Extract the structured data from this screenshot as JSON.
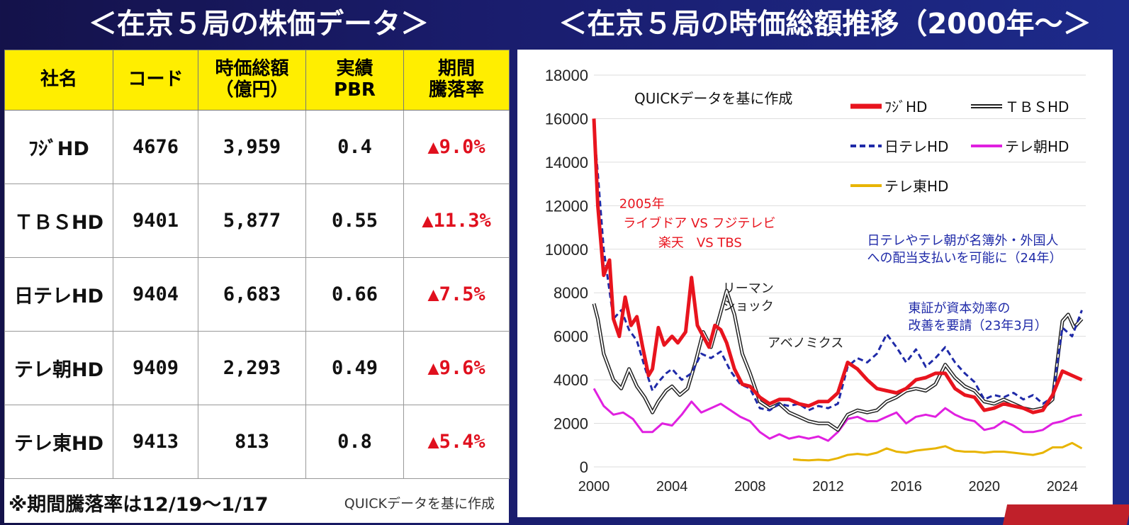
{
  "left_title": "＜在京５局の株価データ＞",
  "right_title": "＜在京５局の時価総額推移（2000年～＞",
  "table": {
    "headers": [
      "社名",
      "コード",
      "時価総額\n（億円）",
      "実績\nPBR",
      "期間\n騰落率"
    ],
    "rows": [
      {
        "name": "ﾌｼﾞHD",
        "code": "4676",
        "mcap": "3,959",
        "pbr": "0.4",
        "change": "▲9.0%"
      },
      {
        "name": "ＴＢＳHD",
        "code": "9401",
        "mcap": "5,877",
        "pbr": "0.55",
        "change": "▲11.3%"
      },
      {
        "name": "日テレHD",
        "code": "9404",
        "mcap": "6,683",
        "pbr": "0.66",
        "change": "▲7.5%"
      },
      {
        "name": "テレ朝HD",
        "code": "9409",
        "mcap": "2,293",
        "pbr": "0.49",
        "change": "▲9.6%"
      },
      {
        "name": "テレ東HD",
        "code": "9413",
        "mcap": "813",
        "pbr": "0.8",
        "change": "▲5.4%"
      }
    ],
    "note": "※期間騰落率は12/19～1/17",
    "source": "QUICKデータを基に作成"
  },
  "chart_source": "QUICKデータを基に作成",
  "chart_data": {
    "type": "line",
    "xlim": [
      2000,
      2025.2
    ],
    "ylim": [
      0,
      18000
    ],
    "yticks": [
      0,
      2000,
      4000,
      6000,
      8000,
      10000,
      12000,
      14000,
      16000,
      18000
    ],
    "xticks": [
      "2000",
      "2004",
      "2008",
      "2012",
      "2016",
      "2020",
      "2024"
    ],
    "grid": "horizontal",
    "legend_position": "top-right",
    "series": [
      {
        "name": "ﾌｼﾞHD",
        "color": "#e8141e",
        "style": "solid-thick",
        "x": [
          2000,
          2000.2,
          2000.5,
          2000.8,
          2001,
          2001.3,
          2001.6,
          2001.9,
          2002.2,
          2002.5,
          2002.8,
          2003,
          2003.3,
          2003.6,
          2004,
          2004.3,
          2004.7,
          2005,
          2005.3,
          2005.6,
          2005.9,
          2006.2,
          2006.5,
          2006.8,
          2007.2,
          2007.6,
          2008,
          2008.5,
          2009,
          2009.5,
          2010,
          2010.5,
          2011,
          2011.5,
          2012,
          2012.5,
          2013,
          2013.5,
          2014,
          2014.5,
          2015,
          2015.5,
          2016,
          2016.5,
          2017,
          2017.5,
          2018,
          2018.5,
          2019,
          2019.5,
          2020,
          2020.5,
          2021,
          2021.5,
          2022,
          2022.5,
          2023,
          2023.5,
          2024,
          2024.5,
          2025
        ],
        "y": [
          16000,
          12000,
          8800,
          9500,
          6800,
          6000,
          7800,
          6500,
          6900,
          5500,
          4200,
          4500,
          6400,
          5600,
          6000,
          5700,
          6200,
          8700,
          6500,
          6000,
          5500,
          6500,
          6300,
          5700,
          4500,
          3800,
          3700,
          3200,
          2900,
          3100,
          3100,
          2900,
          2800,
          3000,
          3000,
          3400,
          4800,
          4500,
          4000,
          3600,
          3500,
          3400,
          3600,
          4000,
          4100,
          4300,
          4300,
          3600,
          3300,
          3200,
          2600,
          2700,
          2900,
          2800,
          2700,
          2500,
          2600,
          3300,
          4400,
          4200,
          4000
        ]
      },
      {
        "name": "ＴＢＳHD",
        "color": "#222222",
        "style": "double",
        "x": [
          2000,
          2000.2,
          2000.5,
          2001,
          2001.4,
          2001.8,
          2002.2,
          2002.6,
          2003,
          2003.3,
          2003.7,
          2004,
          2004.4,
          2004.8,
          2005.2,
          2005.6,
          2006,
          2006.4,
          2006.8,
          2007.2,
          2007.6,
          2008,
          2008.5,
          2009,
          2009.5,
          2010,
          2010.5,
          2011,
          2011.5,
          2012,
          2012.5,
          2013,
          2013.5,
          2014,
          2014.5,
          2015,
          2015.5,
          2016,
          2016.5,
          2017,
          2017.5,
          2018,
          2018.5,
          2019,
          2019.5,
          2020,
          2020.5,
          2021,
          2021.5,
          2022,
          2022.5,
          2023,
          2023.5,
          2024,
          2024.3,
          2024.6,
          2025
        ],
        "y": [
          7500,
          6800,
          5200,
          4000,
          3600,
          4500,
          3700,
          3200,
          2500,
          3000,
          3500,
          3700,
          3300,
          3600,
          4800,
          6200,
          5500,
          6800,
          8100,
          7000,
          5200,
          4300,
          3000,
          2700,
          2900,
          2500,
          2300,
          2100,
          2000,
          2000,
          1700,
          2400,
          2600,
          2500,
          2600,
          3000,
          3200,
          3500,
          3600,
          3500,
          3800,
          4700,
          4100,
          3700,
          3500,
          3000,
          2900,
          3100,
          2900,
          2700,
          2600,
          2700,
          3100,
          6700,
          7000,
          6400,
          6800
        ]
      },
      {
        "name": "日テレHD",
        "color": "#1f2aa8",
        "style": "dashed",
        "x": [
          2000,
          2000.2,
          2000.5,
          2001,
          2001.4,
          2001.8,
          2002.2,
          2002.6,
          2003,
          2003.3,
          2003.7,
          2004,
          2004.5,
          2005,
          2005.5,
          2006,
          2006.5,
          2007,
          2007.5,
          2008,
          2008.5,
          2009,
          2009.5,
          2010,
          2010.5,
          2011,
          2011.5,
          2012,
          2012.5,
          2013,
          2013.5,
          2014,
          2014.5,
          2015,
          2015.5,
          2016,
          2016.5,
          2017,
          2017.5,
          2018,
          2018.5,
          2019,
          2019.5,
          2020,
          2020.5,
          2021,
          2021.5,
          2022,
          2022.5,
          2023,
          2023.5,
          2024,
          2024.5,
          2025
        ],
        "y": [
          15600,
          13500,
          10000,
          6800,
          7200,
          6300,
          5800,
          4600,
          3500,
          3900,
          4300,
          4500,
          4000,
          4300,
          5200,
          5000,
          5300,
          4400,
          3800,
          3600,
          2700,
          2600,
          2900,
          2800,
          2900,
          2600,
          2800,
          2700,
          2900,
          4600,
          5000,
          4800,
          5200,
          6100,
          5500,
          4800,
          5400,
          4600,
          5000,
          5500,
          4800,
          4300,
          3900,
          3100,
          3300,
          3200,
          3400,
          3100,
          3300,
          2900,
          3200,
          6400,
          6000,
          7200
        ]
      },
      {
        "name": "テレ朝HD",
        "color": "#e020e0",
        "style": "solid",
        "x": [
          2000,
          2000.5,
          2001,
          2001.5,
          2002,
          2002.5,
          2003,
          2003.5,
          2004,
          2004.5,
          2005,
          2005.5,
          2006,
          2006.5,
          2007,
          2007.5,
          2008,
          2008.5,
          2009,
          2009.5,
          2010,
          2010.5,
          2011,
          2011.5,
          2012,
          2012.5,
          2013,
          2013.5,
          2014,
          2014.5,
          2015,
          2015.5,
          2016,
          2016.5,
          2017,
          2017.5,
          2018,
          2018.5,
          2019,
          2019.5,
          2020,
          2020.5,
          2021,
          2021.5,
          2022,
          2022.5,
          2023,
          2023.5,
          2024,
          2024.5,
          2025
        ],
        "y": [
          3600,
          2800,
          2400,
          2500,
          2200,
          1600,
          1600,
          2000,
          1900,
          2400,
          3000,
          2500,
          2700,
          2900,
          2600,
          2300,
          2100,
          1600,
          1300,
          1500,
          1300,
          1400,
          1300,
          1400,
          1200,
          1600,
          2200,
          2300,
          2100,
          2100,
          2300,
          2500,
          2000,
          2300,
          2400,
          2300,
          2700,
          2400,
          2200,
          2100,
          1700,
          1800,
          2100,
          1900,
          1600,
          1600,
          1700,
          2000,
          2100,
          2300,
          2400
        ]
      },
      {
        "name": "テレ東HD",
        "color": "#e8b400",
        "style": "solid",
        "x": [
          2010.2,
          2010.6,
          2011,
          2011.5,
          2012,
          2012.5,
          2013,
          2013.5,
          2014,
          2014.5,
          2015,
          2015.5,
          2016,
          2016.5,
          2017,
          2017.5,
          2018,
          2018.5,
          2019,
          2019.5,
          2020,
          2020.5,
          2021,
          2021.5,
          2022,
          2022.5,
          2023,
          2023.5,
          2024,
          2024.5,
          2025
        ],
        "y": [
          350,
          320,
          300,
          330,
          300,
          400,
          550,
          600,
          550,
          650,
          850,
          700,
          650,
          750,
          800,
          850,
          950,
          750,
          700,
          700,
          650,
          700,
          700,
          650,
          600,
          550,
          650,
          900,
          900,
          1100,
          850
        ]
      }
    ],
    "annotations": [
      {
        "text": "2005年",
        "color": "#e8141e",
        "x": 2001.3,
        "y": 11900
      },
      {
        "text": "ライブドア VS フジテレビ",
        "color": "#e8141e",
        "x": 2001.5,
        "y": 11000
      },
      {
        "text": "楽天　VS TBS",
        "color": "#e8141e",
        "x": 2003.3,
        "y": 10100
      },
      {
        "text": "日テレやテレ朝が名簿外・外国人",
        "color": "#1f2aa8",
        "x": 2014.0,
        "y": 10200
      },
      {
        "text": "への配当支払いを可能に（24年）",
        "color": "#1f2aa8",
        "x": 2014.0,
        "y": 9400
      },
      {
        "text": "リーマン",
        "color": "#222222",
        "x": 2006.6,
        "y": 8000
      },
      {
        "text": "ショック",
        "color": "#222222",
        "x": 2006.6,
        "y": 7200
      },
      {
        "text": "東証が資本効率の",
        "color": "#1f2aa8",
        "x": 2016.1,
        "y": 7100
      },
      {
        "text": "改善を要請（23年3月）",
        "color": "#1f2aa8",
        "x": 2016.1,
        "y": 6300
      },
      {
        "text": "アベノミクス",
        "color": "#222222",
        "x": 2008.9,
        "y": 5500
      }
    ]
  }
}
